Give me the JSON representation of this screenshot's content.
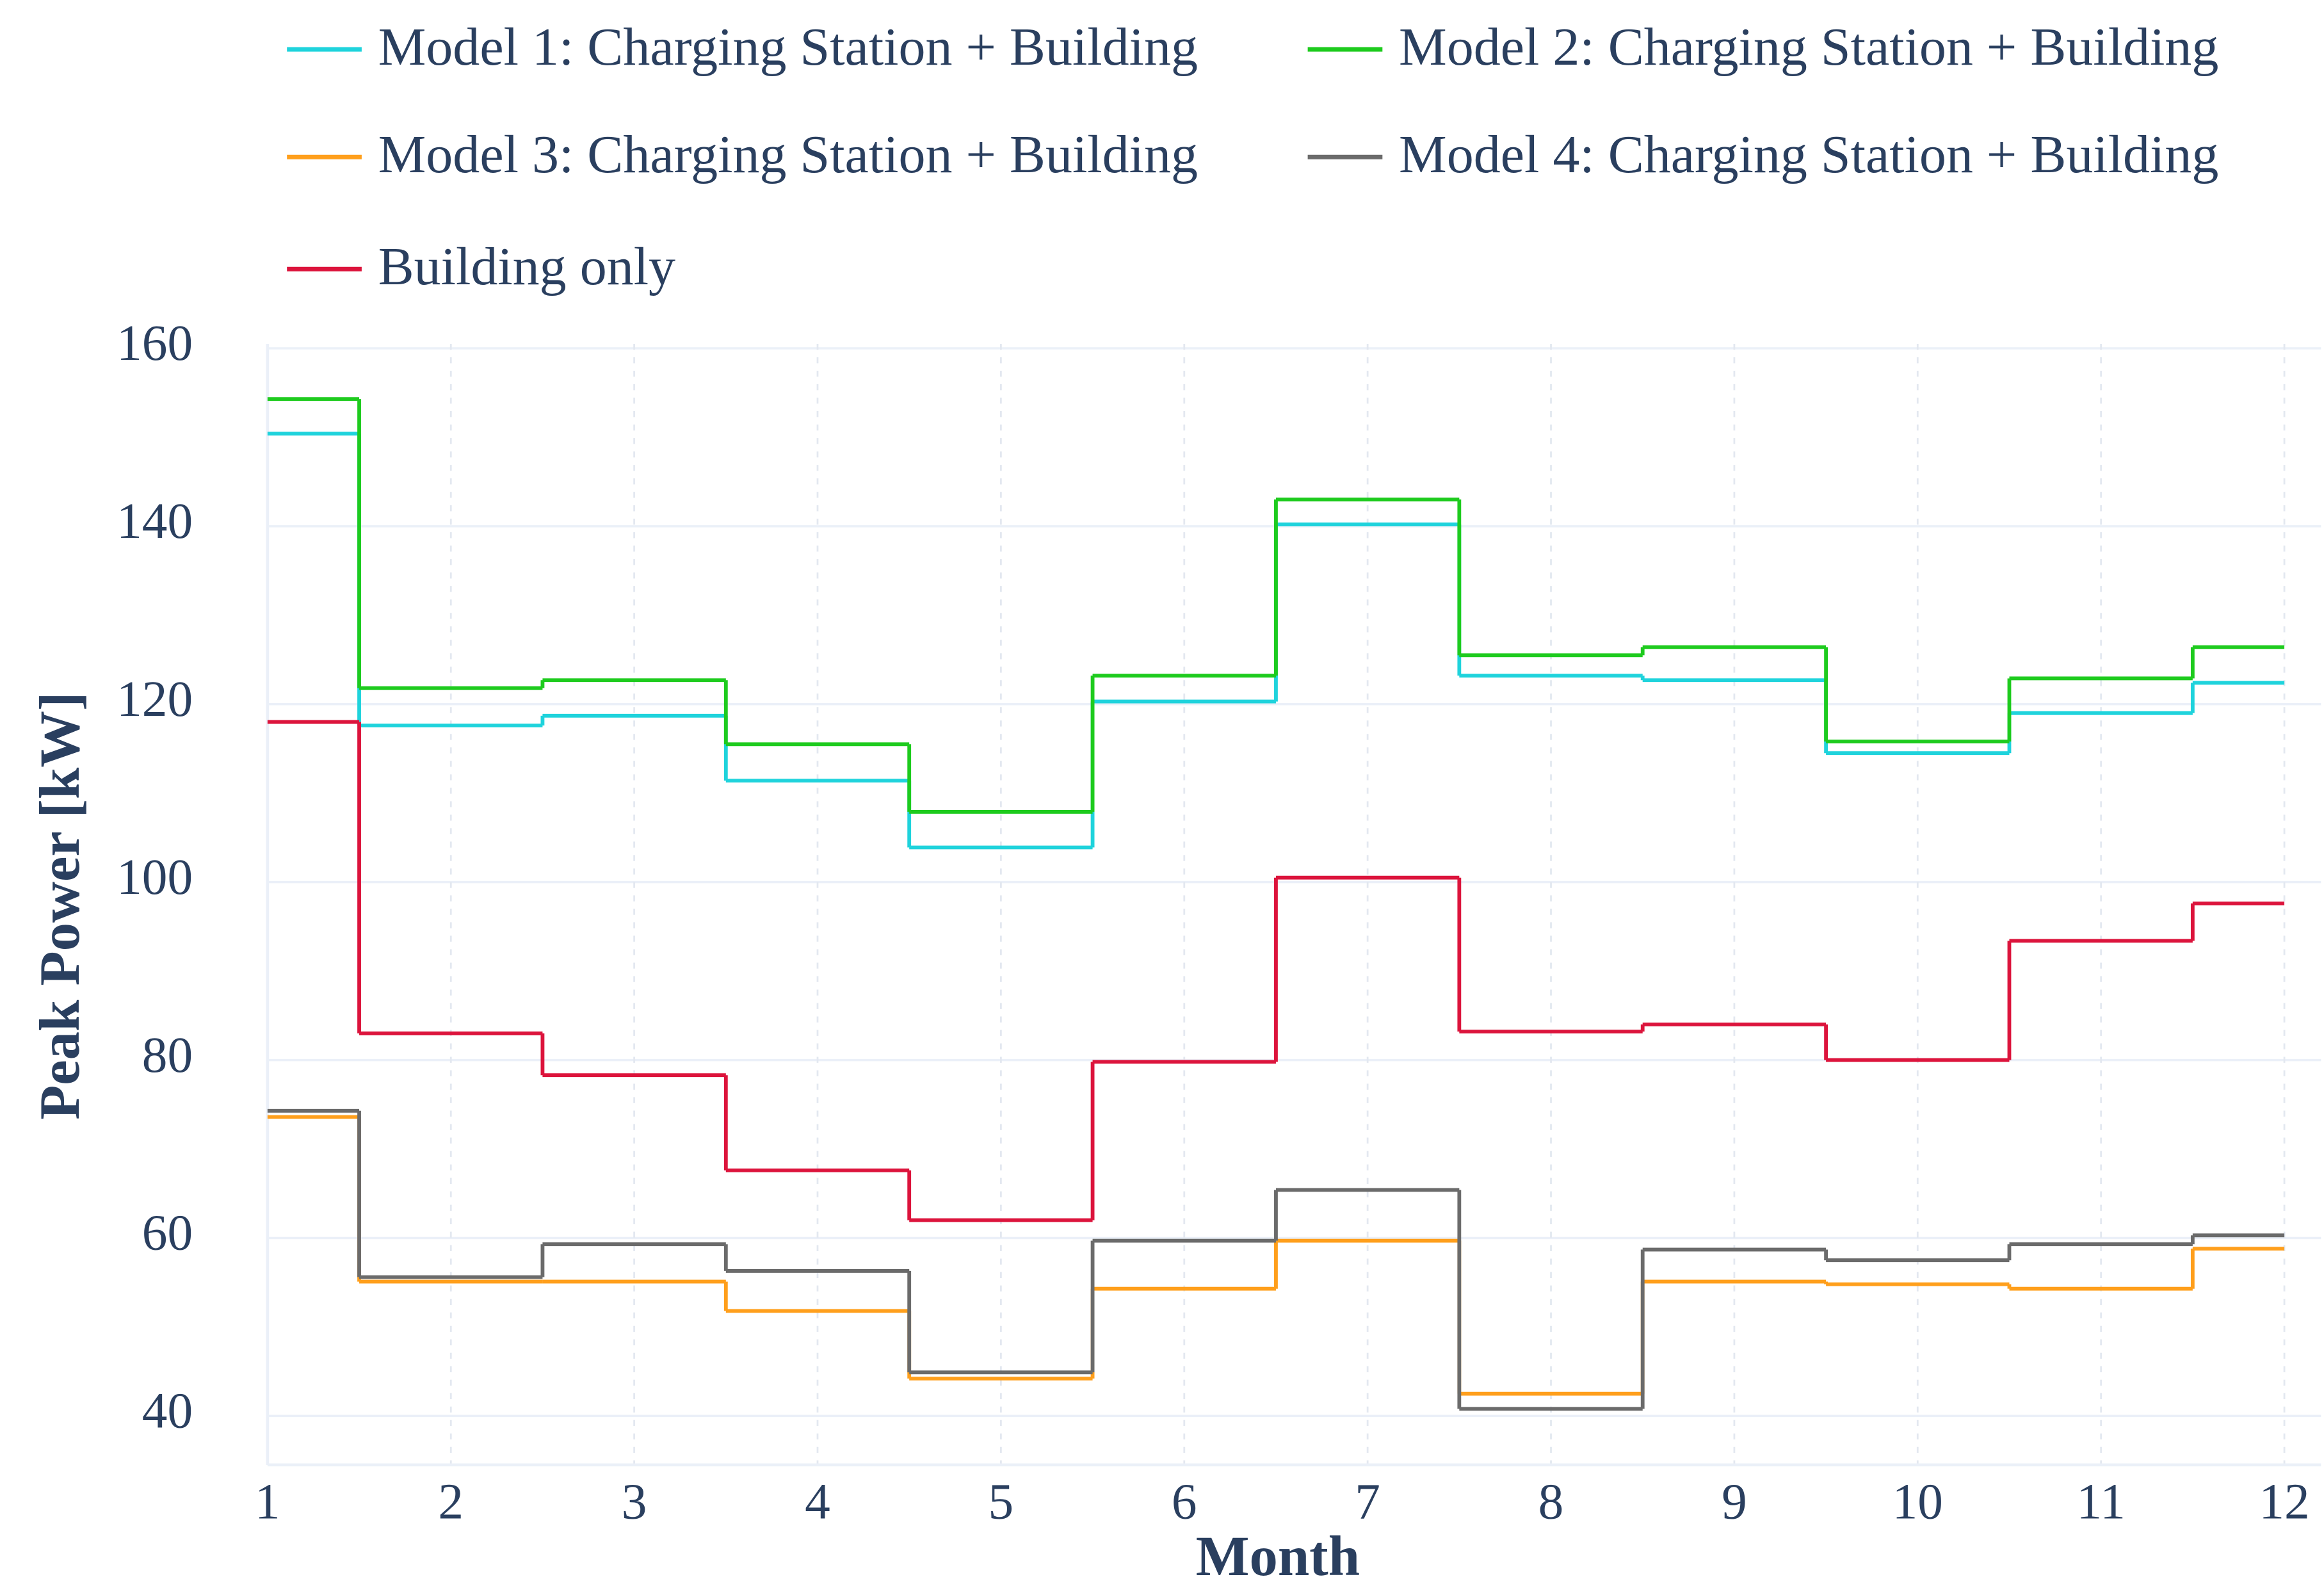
{
  "chart_data": {
    "type": "line",
    "step": "mid",
    "x_label": "Month",
    "y_label": "Peak Power [kW]",
    "x": [
      1,
      2,
      3,
      4,
      5,
      6,
      7,
      8,
      9,
      10,
      11,
      12
    ],
    "series": [
      {
        "name": "Model 1: Charging Station + Building",
        "color": "#1fd3dc",
        "values": [
          150.4,
          117.6,
          118.7,
          111.4,
          103.9,
          120.3,
          140.2,
          123.2,
          122.7,
          114.5,
          119.0,
          122.4
        ]
      },
      {
        "name": "Model 2: Charging Station + Building",
        "color": "#1ecb1e",
        "values": [
          154.3,
          121.8,
          122.7,
          115.5,
          107.9,
          123.2,
          143.0,
          125.5,
          126.4,
          115.8,
          122.9,
          126.4
        ]
      },
      {
        "name": "Model 3: Charging Station + Building",
        "color": "#ff9f1c",
        "values": [
          73.6,
          55.1,
          55.1,
          51.8,
          44.2,
          54.3,
          59.7,
          42.5,
          55.1,
          54.8,
          54.3,
          58.8
        ]
      },
      {
        "name": "Model 4: Charging Station + Building",
        "color": "#6b6b6b",
        "values": [
          74.3,
          55.6,
          59.3,
          56.3,
          44.9,
          59.7,
          65.4,
          40.8,
          58.7,
          57.5,
          59.3,
          60.3
        ]
      },
      {
        "name": "Building only",
        "color": "#dc143c",
        "values": [
          118.0,
          83.0,
          78.3,
          67.6,
          62.0,
          79.8,
          100.5,
          83.2,
          84.0,
          80.0,
          93.4,
          97.6
        ]
      }
    ],
    "xlim": [
      1,
      12.2
    ],
    "xticks": [
      1,
      2,
      3,
      4,
      5,
      6,
      7,
      8,
      9,
      10,
      11,
      12
    ],
    "ylim": [
      34.5,
      160.5
    ],
    "yticks": [
      40,
      60,
      80,
      100,
      120,
      140,
      160
    ],
    "grid": true,
    "legend": "top"
  }
}
